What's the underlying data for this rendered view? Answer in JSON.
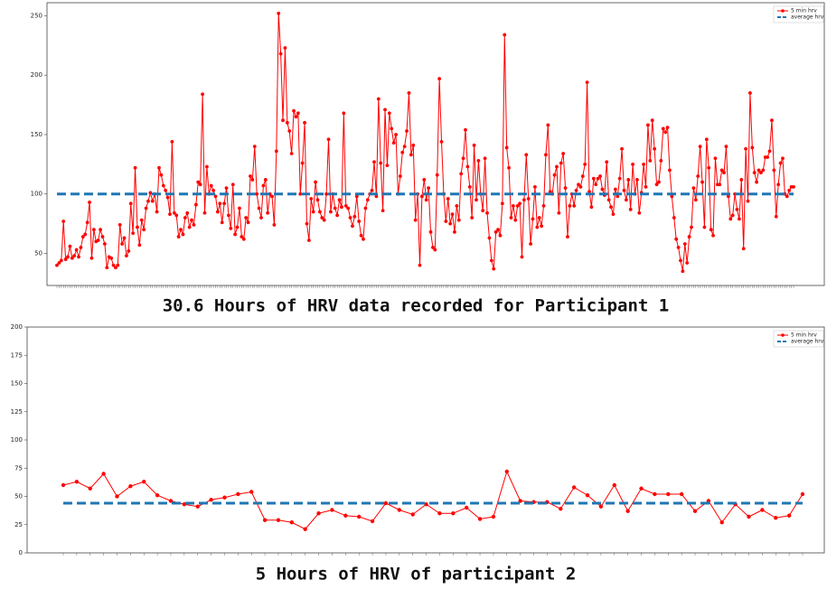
{
  "chart_data": [
    {
      "type": "line",
      "title": "30.6 Hours of HRV data recorded for Participant 1",
      "series": [
        {
          "name": "5 min hrv",
          "color": "#ff0000",
          "values": [
            40,
            42,
            44,
            77,
            45,
            47,
            56,
            46,
            48,
            53,
            47,
            55,
            64,
            66,
            76,
            93,
            46,
            70,
            60,
            61,
            70,
            64,
            58,
            38,
            47,
            46,
            40,
            38,
            40,
            74,
            58,
            63,
            48,
            52,
            92,
            67,
            122,
            72,
            57,
            78,
            70,
            88,
            94,
            101,
            94,
            100,
            85,
            122,
            116,
            107,
            103,
            97,
            83,
            144,
            84,
            82,
            64,
            70,
            66,
            80,
            84,
            72,
            78,
            74,
            91,
            110,
            108,
            184,
            84,
            123,
            100,
            107,
            103,
            98,
            85,
            92,
            76,
            92,
            105,
            82,
            71,
            108,
            66,
            72,
            88,
            64,
            62,
            80,
            76,
            115,
            112,
            140,
            100,
            88,
            80,
            107,
            112,
            84,
            100,
            98,
            74,
            136,
            252,
            218,
            162,
            223,
            160,
            153,
            134,
            170,
            165,
            168,
            100,
            126,
            160,
            75,
            61,
            96,
            85,
            110,
            95,
            85,
            80,
            78,
            100,
            146,
            85,
            100,
            88,
            82,
            95,
            89,
            168,
            90,
            88,
            80,
            73,
            81,
            98,
            77,
            65,
            62,
            88,
            95,
            100,
            103,
            127,
            98,
            180,
            126,
            86,
            171,
            124,
            168,
            155,
            143,
            150,
            100,
            115,
            135,
            140,
            153,
            185,
            133,
            141,
            78,
            100,
            40,
            98,
            112,
            95,
            105,
            68,
            55,
            53,
            116,
            197,
            144,
            100,
            77,
            96,
            75,
            83,
            68,
            90,
            78,
            117,
            130,
            154,
            123,
            106,
            80,
            141,
            95,
            128,
            100,
            86,
            130,
            84,
            63,
            44,
            37,
            68,
            70,
            65,
            92,
            234,
            139,
            122,
            80,
            90,
            78,
            90,
            92,
            47,
            95,
            133,
            96,
            58,
            79,
            106,
            72,
            80,
            73,
            90,
            133,
            158,
            102,
            100,
            116,
            123,
            84,
            126,
            134,
            105,
            64,
            90,
            100,
            90,
            103,
            108,
            106,
            115,
            125,
            194,
            102,
            89,
            113,
            108,
            113,
            115,
            104,
            99,
            127,
            95,
            89,
            83,
            104,
            98,
            113,
            138,
            103,
            95,
            112,
            87,
            125,
            100,
            112,
            84,
            101,
            125,
            106,
            158,
            128,
            162,
            138,
            108,
            110,
            128,
            155,
            152,
            156,
            120,
            98,
            80,
            62,
            55,
            44,
            35,
            58,
            42,
            64,
            72,
            105,
            95,
            115,
            140,
            110,
            72,
            146,
            122,
            70,
            65,
            130,
            108,
            108,
            120,
            118,
            140,
            98,
            79,
            82,
            100,
            87,
            79,
            112,
            54,
            138,
            94,
            185,
            139,
            118,
            110,
            120,
            118,
            120,
            131,
            131,
            136,
            162,
            120,
            81,
            108,
            126,
            130,
            100,
            98,
            103,
            106,
            106
          ]
        }
      ],
      "average": {
        "name": "average hrv",
        "color": "#1f77b4",
        "value": 100
      },
      "ylim": [
        23,
        261
      ],
      "yticks": [
        50,
        100,
        150,
        200,
        250
      ],
      "legend": "upper right"
    },
    {
      "type": "line",
      "title": "5 Hours of HRV of participant 2",
      "series": [
        {
          "name": "5 min hrv",
          "color": "#ff0000",
          "values": [
            60,
            63,
            57,
            70,
            50,
            59,
            63,
            51,
            46,
            43,
            41,
            47,
            49,
            52,
            54,
            29,
            29,
            27,
            21,
            35,
            38,
            33,
            32,
            28,
            44,
            38,
            34,
            43,
            35,
            35,
            40,
            30,
            32,
            72,
            46,
            45,
            45,
            39,
            58,
            51,
            41,
            60,
            37,
            57,
            52,
            52,
            52,
            37,
            46,
            27,
            43,
            32,
            38,
            31,
            33,
            52
          ]
        }
      ],
      "average": {
        "name": "average hrv",
        "color": "#1f77b4",
        "value": 44
      },
      "ylim": [
        0,
        200
      ],
      "yticks": [
        0,
        25,
        50,
        75,
        100,
        125,
        150,
        175,
        200
      ],
      "legend": "upper right"
    }
  ]
}
